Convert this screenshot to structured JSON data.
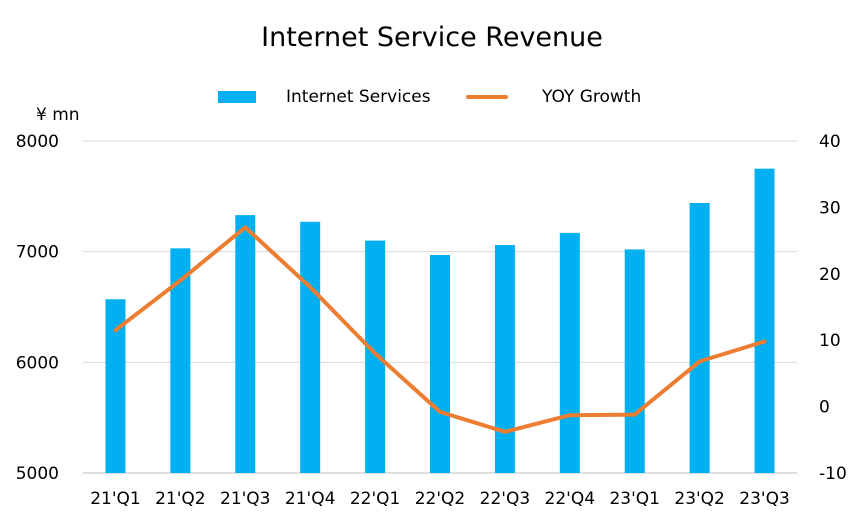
{
  "chart_data": {
    "type": "bar",
    "title": "Internet Service Revenue",
    "categories": [
      "21'Q1",
      "21'Q2",
      "21'Q3",
      "21'Q4",
      "22'Q1",
      "22'Q2",
      "22'Q3",
      "22'Q4",
      "23'Q1",
      "23'Q2",
      "23'Q3"
    ],
    "series": [
      {
        "name": "Internet Services",
        "type": "bar",
        "axis": "left",
        "values": [
          6570,
          7030,
          7330,
          7270,
          7100,
          6970,
          7060,
          7170,
          7020,
          7440,
          7750
        ]
      },
      {
        "name": "YOY Growth",
        "type": "line",
        "axis": "right",
        "values": [
          11.5,
          19.0,
          27.0,
          18.0,
          8.0,
          -0.8,
          -3.8,
          -1.3,
          -1.2,
          6.8,
          9.8
        ]
      }
    ],
    "ylabel": "¥ mn",
    "ylim": [
      5000,
      8000
    ],
    "yticks": [
      5000,
      6000,
      7000,
      8000
    ],
    "y2lim": [
      -10,
      40
    ],
    "y2ticks": [
      -10,
      0,
      10,
      20,
      30,
      40
    ],
    "grid": true,
    "legend": "top",
    "colors": {
      "bar": "#00b0f0",
      "line": "#ed7d31",
      "grid": "#d9d9d9"
    }
  }
}
